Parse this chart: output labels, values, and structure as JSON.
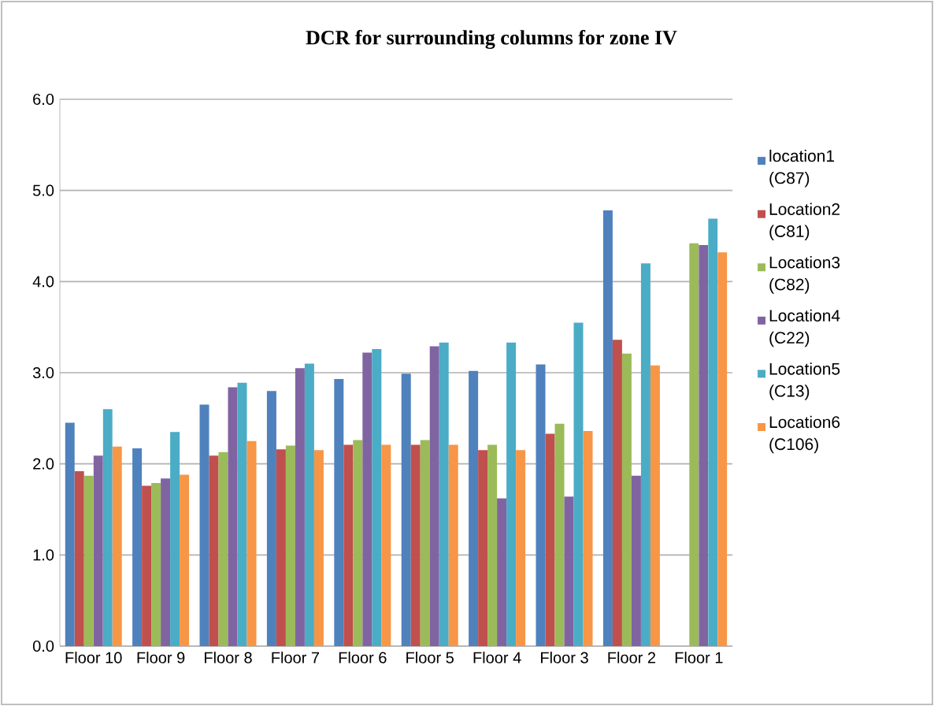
{
  "chart_data": {
    "type": "bar",
    "title": "DCR for surrounding columns for zone IV",
    "categories": [
      "Floor 10",
      "Floor 9",
      "Floor 8",
      "Floor 7",
      "Floor 6",
      "Floor 5",
      "Floor 4",
      "Floor 3",
      "Floor 2",
      "Floor 1"
    ],
    "series": [
      {
        "name": "location1 (C87)",
        "color": "#4f81bd",
        "values": [
          2.45,
          2.17,
          2.65,
          2.8,
          2.93,
          2.99,
          3.02,
          3.09,
          4.78,
          null
        ]
      },
      {
        "name": "Location2 (C81)",
        "color": "#c0504d",
        "values": [
          1.92,
          1.76,
          2.09,
          2.16,
          2.21,
          2.21,
          2.15,
          2.33,
          3.36,
          null
        ]
      },
      {
        "name": "Location3 (C82)",
        "color": "#9bbb59",
        "values": [
          1.87,
          1.79,
          2.13,
          2.2,
          2.26,
          2.26,
          2.21,
          2.44,
          3.21,
          4.42
        ]
      },
      {
        "name": "Location4 (C22)",
        "color": "#8064a2",
        "values": [
          2.09,
          1.84,
          2.84,
          3.05,
          3.22,
          3.29,
          1.62,
          1.64,
          1.87,
          4.4
        ]
      },
      {
        "name": "Location5 (C13)",
        "color": "#4bacc6",
        "values": [
          2.6,
          2.35,
          2.89,
          3.1,
          3.26,
          3.33,
          3.33,
          3.55,
          4.2,
          4.69
        ]
      },
      {
        "name": "Location6 (C106)",
        "color": "#f79646",
        "values": [
          2.19,
          1.88,
          2.25,
          2.15,
          2.21,
          2.21,
          2.15,
          2.36,
          3.08,
          4.32
        ]
      }
    ],
    "ylim": [
      0,
      6
    ],
    "yticks": [
      {
        "value": 0,
        "label": "0.0"
      },
      {
        "value": 1,
        "label": "1.0"
      },
      {
        "value": 2,
        "label": "2.0"
      },
      {
        "value": 3,
        "label": "3.0"
      },
      {
        "value": 4,
        "label": "4.0"
      },
      {
        "value": 5,
        "label": "5.0"
      },
      {
        "value": 6,
        "label": "6.0"
      }
    ],
    "grid": "y",
    "legend": "right"
  }
}
